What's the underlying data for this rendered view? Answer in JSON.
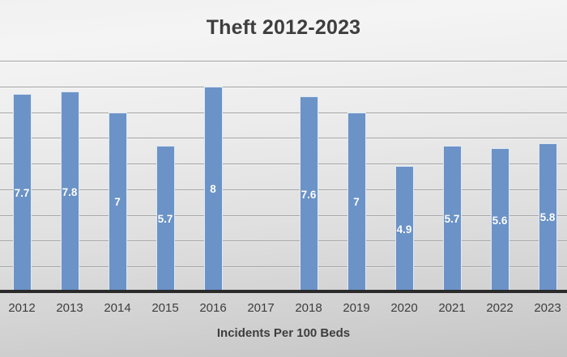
{
  "chart_data": {
    "type": "bar",
    "title": "Theft 2012-2023",
    "xlabel": "Incidents Per 100 Beds",
    "ylabel": "",
    "categories": [
      "2012",
      "2013",
      "2014",
      "2015",
      "2016",
      "2017",
      "2018",
      "2019",
      "2020",
      "2021",
      "2022",
      "2023"
    ],
    "values": [
      7.7,
      7.8,
      7,
      5.7,
      8,
      null,
      7.6,
      7,
      4.9,
      5.7,
      5.6,
      5.8
    ],
    "ylim": [
      0,
      9
    ],
    "gridline_interval": 1,
    "grid": true,
    "legend": "none",
    "y_axis_labels": "none",
    "data_labels": {
      "show": true,
      "position": "center",
      "color": "#ffffff"
    },
    "colors": {
      "bar_fill": "#6b93c7",
      "bar_border": "#dfe8f3",
      "gridline": "#a3a3a3",
      "axis_line": "#2b2b2b",
      "title_text": "#3e3e3e",
      "tick_text": "#3d3d3d"
    }
  }
}
